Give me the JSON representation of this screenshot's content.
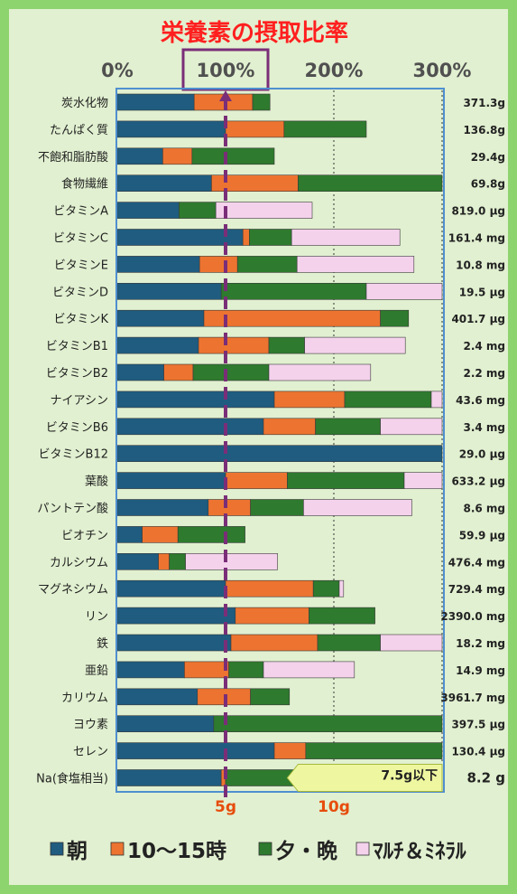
{
  "chart_data": {
    "type": "stacked-bar-horizontal",
    "title": "栄養素の摂取比率",
    "x_ticks": [
      "0%",
      "100%",
      "200%",
      "300%"
    ],
    "xlim": [
      0,
      300
    ],
    "categories": [
      "炭水化物",
      "たんぱく質",
      "不飽和脂肪酸",
      "食物繊維",
      "ビタミンA",
      "ビタミンC",
      "ビタミンE",
      "ビタミンD",
      "ビタミンK",
      "ビタミンB1",
      "ビタミンB2",
      "ナイアシン",
      "ビタミンB6",
      "ビタミンB12",
      "葉酸",
      "パントテン酸",
      "ビオチン",
      "カルシウム",
      "マグネシウム",
      "リン",
      "鉄",
      "亜鉛",
      "カリウム",
      "ヨウ素",
      "セレン",
      "Na(食塩相当)"
    ],
    "amounts": [
      "371.3g",
      "136.8g",
      "29.4g",
      "69.8g",
      "819.0 μg",
      "161.4 mg",
      "10.8 mg",
      "19.5 μg",
      "401.7 μg",
      "2.4 mg",
      "2.2 mg",
      "43.6 mg",
      "3.4 mg",
      "29.0 μg",
      "633.2 μg",
      "8.6 mg",
      "59.9 μg",
      "476.4 mg",
      "729.4 mg",
      "2390.0 mg",
      "18.2 mg",
      "14.9 mg",
      "3961.7 mg",
      "397.5 μg",
      "130.4 μg",
      "8.2 g"
    ],
    "series": [
      {
        "name": "朝",
        "values": [
          71,
          100,
          42,
          87,
          57,
          116,
          76,
          96,
          80,
          75,
          43,
          145,
          135,
          300,
          100,
          84,
          23,
          38,
          100,
          109,
          105,
          62,
          74,
          89,
          145,
          96
        ]
      },
      {
        "name": "10～15時",
        "values": [
          54,
          54,
          27,
          80,
          0,
          6,
          35,
          0,
          163,
          65,
          27,
          65,
          48,
          0,
          57,
          39,
          33,
          10,
          81,
          68,
          80,
          41,
          49,
          0,
          29,
          4
        ]
      },
      {
        "name": "夕・晩",
        "values": [
          16,
          76,
          76,
          133,
          34,
          39,
          55,
          134,
          26,
          33,
          70,
          80,
          60,
          0,
          108,
          49,
          62,
          15,
          24,
          61,
          58,
          32,
          36,
          211,
          126,
          65
        ]
      },
      {
        "name": "ﾏﾙﾁ＆ﾐﾈﾗﾙ",
        "values": [
          0,
          0,
          0,
          0,
          89,
          100,
          108,
          70,
          0,
          93,
          94,
          10,
          57,
          0,
          37,
          100,
          0,
          85,
          4,
          0,
          57,
          84,
          0,
          0,
          0,
          0
        ]
      }
    ],
    "colors": [
      "#1f5c80",
      "#ec7430",
      "#2e7a2e",
      "#f4d2ec"
    ],
    "salt_axis_labels": [
      "5g",
      "10g"
    ],
    "salt_goal_note": "7.5g以下",
    "reference_line": "100%",
    "legend_position": "bottom",
    "grid": "dashed verticals at 200% and 300%"
  }
}
